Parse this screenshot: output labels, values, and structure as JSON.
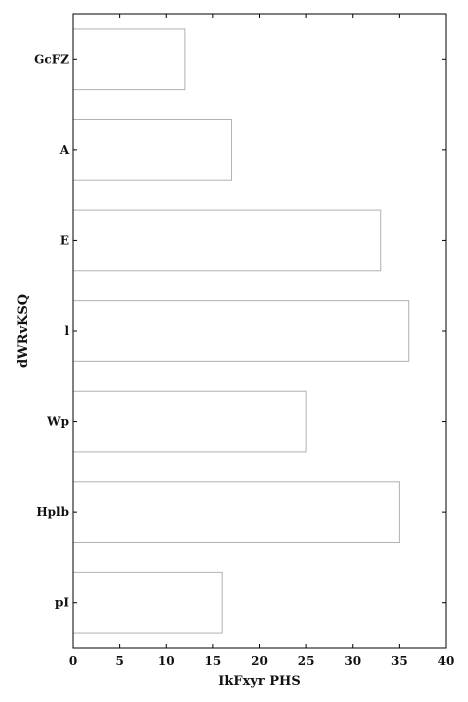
{
  "chart_data": {
    "type": "bar",
    "orientation": "horizontal",
    "categories": [
      "GcFZ",
      "A",
      "E",
      "l",
      "Wp",
      "Hplb",
      "pI"
    ],
    "values": [
      12,
      17,
      33,
      36,
      25,
      35,
      16
    ],
    "xlabel": "IkFxyr PHS",
    "ylabel": "dWRvKSQ",
    "xlim": [
      0,
      40
    ],
    "xticks": [
      0,
      5,
      10,
      15,
      20,
      25,
      30,
      35,
      40
    ],
    "grid": false,
    "bar_fill": "#ffffff",
    "bar_edge": "#b0b0b0",
    "axis_color": "#000000"
  }
}
